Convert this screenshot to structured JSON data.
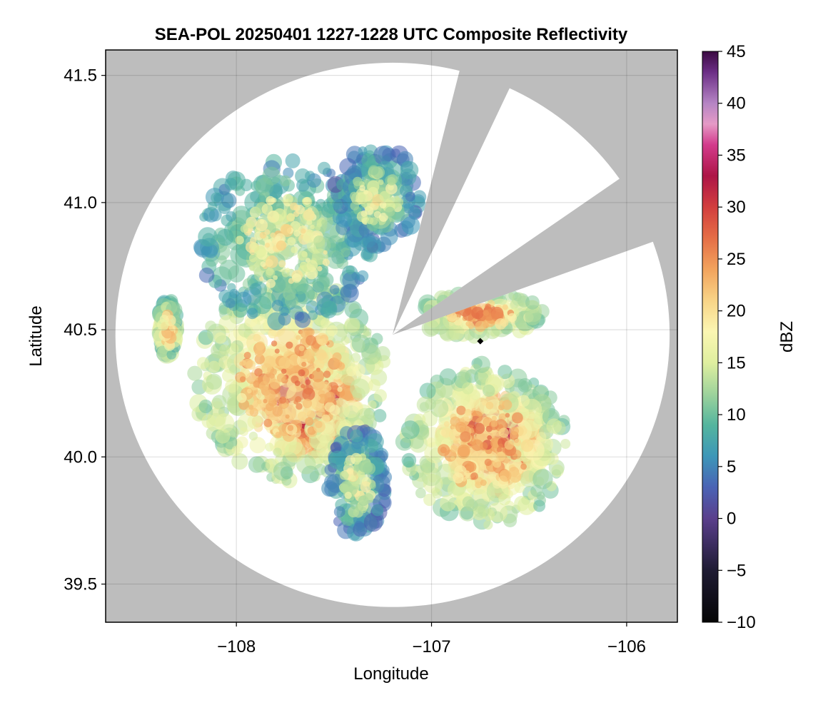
{
  "chart_data": {
    "type": "heatmap",
    "title": "SEA-POL 20250401 1227-1228 UTC Composite Reflectivity",
    "xlabel": "Longitude",
    "ylabel": "Latitude",
    "xlim": [
      -108.67,
      -105.74
    ],
    "ylim": [
      39.35,
      41.6
    ],
    "xticks": [
      -108,
      -107,
      -106
    ],
    "xtick_labels": [
      "−108",
      "−107",
      "−106"
    ],
    "yticks": [
      39.5,
      40.0,
      40.5,
      41.0,
      41.5
    ],
    "ytick_labels": [
      "39.5",
      "40.0",
      "40.5",
      "41.0",
      "41.5"
    ],
    "grid": true,
    "background_color": "#bdbdbd",
    "radar": {
      "center_lon": -107.2,
      "center_lat": 40.48,
      "range_lon": 1.42,
      "range_lat": 1.07,
      "blocked_sectors_deg": [
        [
          14,
          25
        ],
        [
          55,
          70
        ]
      ],
      "blocked_color": "#bdbdbd",
      "coverage_color": "#ffffff",
      "site_marker": {
        "lon": -106.75,
        "lat": 40.455,
        "shape": "diamond",
        "color": "#000000"
      }
    },
    "colorbar": {
      "label": "dBZ",
      "min": -10,
      "max": 45,
      "ticks": [
        -10,
        -5,
        0,
        5,
        10,
        15,
        20,
        25,
        30,
        35,
        40,
        45
      ],
      "tick_labels": [
        "−10",
        "−5",
        "0",
        "5",
        "10",
        "15",
        "20",
        "25",
        "30",
        "35",
        "40",
        "45"
      ],
      "palette": [
        {
          "v": -10,
          "c": "#050505"
        },
        {
          "v": -5,
          "c": "#1e1b33"
        },
        {
          "v": 0,
          "c": "#5a3f8c"
        },
        {
          "v": 3,
          "c": "#4a63b5"
        },
        {
          "v": 6,
          "c": "#3d97b8"
        },
        {
          "v": 9,
          "c": "#54b59e"
        },
        {
          "v": 12,
          "c": "#9ed39c"
        },
        {
          "v": 15,
          "c": "#dfef9f"
        },
        {
          "v": 18,
          "c": "#fbf6b2"
        },
        {
          "v": 21,
          "c": "#f8d487"
        },
        {
          "v": 24,
          "c": "#f2a35d"
        },
        {
          "v": 27,
          "c": "#e56e46"
        },
        {
          "v": 30,
          "c": "#d23e3e"
        },
        {
          "v": 33,
          "c": "#ad1547"
        },
        {
          "v": 36,
          "c": "#d33b8c"
        },
        {
          "v": 38,
          "c": "#e59ac6"
        },
        {
          "v": 40,
          "c": "#b585c4"
        },
        {
          "v": 43,
          "c": "#6c2e86"
        },
        {
          "v": 45,
          "c": "#3b0a42"
        }
      ]
    },
    "echo_regions": [
      {
        "name": "southwest core",
        "lon": -107.65,
        "lat": 40.22,
        "rlon": 0.28,
        "rlat": 0.22,
        "dbz": 31
      },
      {
        "name": "southwest rim",
        "lon": -107.72,
        "lat": 40.3,
        "rlon": 0.5,
        "rlat": 0.4,
        "dbz": 22
      },
      {
        "name": "southeast core",
        "lon": -106.68,
        "lat": 40.06,
        "rlon": 0.26,
        "rlat": 0.2,
        "dbz": 30
      },
      {
        "name": "southeast rim",
        "lon": -106.72,
        "lat": 40.05,
        "rlon": 0.42,
        "rlat": 0.32,
        "dbz": 22
      },
      {
        "name": "northwest field",
        "lon": -107.75,
        "lat": 40.85,
        "rlon": 0.45,
        "rlat": 0.32,
        "dbz": 16
      },
      {
        "name": "north plume",
        "lon": -107.28,
        "lat": 41.02,
        "rlon": 0.22,
        "rlat": 0.2,
        "dbz": 14
      },
      {
        "name": "east band",
        "lon": -106.75,
        "lat": 40.56,
        "rlon": 0.32,
        "rlat": 0.09,
        "dbz": 22
      },
      {
        "name": "west fringe",
        "lon": -108.35,
        "lat": 40.5,
        "rlon": 0.05,
        "rlat": 0.12,
        "dbz": 20
      },
      {
        "name": "south strip",
        "lon": -107.38,
        "lat": 39.9,
        "rlon": 0.15,
        "rlat": 0.22,
        "dbz": 14
      }
    ]
  }
}
